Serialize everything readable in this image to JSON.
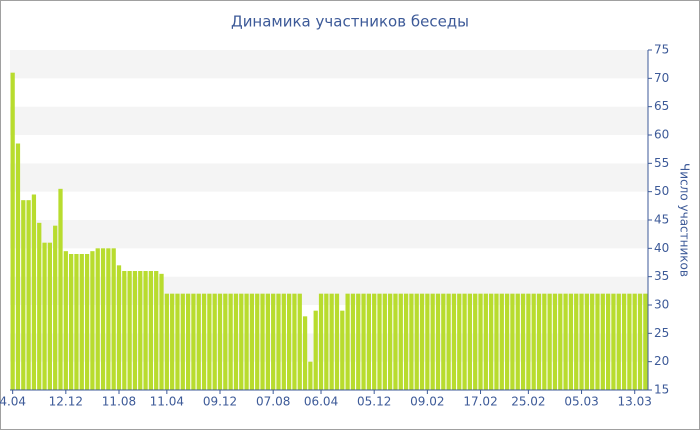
{
  "chart_data": {
    "type": "bar",
    "title": "Динамика участников беседы",
    "y_axis_label": "Число участников",
    "color": "#b8dc2e",
    "grid": "bands",
    "y_axis_side": "right",
    "categories": [
      "4.04",
      null,
      null,
      null,
      null,
      null,
      null,
      null,
      null,
      null,
      "12.12",
      null,
      null,
      null,
      null,
      null,
      null,
      null,
      null,
      null,
      "11.08",
      null,
      null,
      null,
      null,
      null,
      null,
      null,
      null,
      "11.04",
      null,
      null,
      null,
      null,
      null,
      null,
      null,
      null,
      null,
      "09.12",
      null,
      null,
      null,
      null,
      null,
      null,
      null,
      null,
      null,
      "07.08",
      null,
      null,
      null,
      null,
      null,
      null,
      null,
      null,
      "06.04",
      null,
      null,
      null,
      null,
      null,
      null,
      null,
      null,
      null,
      "05.12",
      null,
      null,
      null,
      null,
      null,
      null,
      null,
      null,
      null,
      "09.02",
      null,
      null,
      null,
      null,
      null,
      null,
      null,
      null,
      null,
      "17.02",
      null,
      null,
      null,
      null,
      null,
      null,
      null,
      null,
      "25.02",
      null,
      null,
      null,
      null,
      null,
      null,
      null,
      null,
      null,
      "05.03",
      null,
      null,
      null,
      null,
      null,
      null,
      null,
      null,
      null,
      "13.03",
      null,
      null
    ],
    "values": [
      71,
      58.5,
      48.5,
      48.5,
      49.5,
      44.5,
      41,
      41,
      44,
      50.5,
      39.5,
      39,
      39,
      39,
      39,
      39.5,
      40,
      40,
      40,
      40,
      37,
      36,
      36,
      36,
      36,
      36,
      36,
      36,
      35.5,
      32,
      32,
      32,
      32,
      32,
      32,
      32,
      32,
      32,
      32,
      32,
      32,
      32,
      32,
      32,
      32,
      32,
      32,
      32,
      32,
      32,
      32,
      32,
      32,
      32,
      32,
      28,
      20,
      29,
      32,
      32,
      32,
      32,
      29,
      32,
      32,
      32,
      32,
      32,
      32,
      32,
      32,
      32,
      32,
      32,
      32,
      32,
      32,
      32,
      32,
      32,
      32,
      32,
      32,
      32,
      32,
      32,
      32,
      32,
      32,
      32,
      32,
      32,
      32,
      32,
      32,
      32,
      32,
      32,
      32,
      32,
      32,
      32,
      32,
      32,
      32,
      32,
      32,
      32,
      32,
      32,
      32,
      32,
      32,
      32,
      32,
      32,
      32,
      32,
      32,
      32
    ],
    "ylim": [
      15,
      75
    ],
    "yticks": [
      15,
      20,
      25,
      30,
      35,
      40,
      45,
      50,
      55,
      60,
      65,
      70,
      75
    ]
  }
}
